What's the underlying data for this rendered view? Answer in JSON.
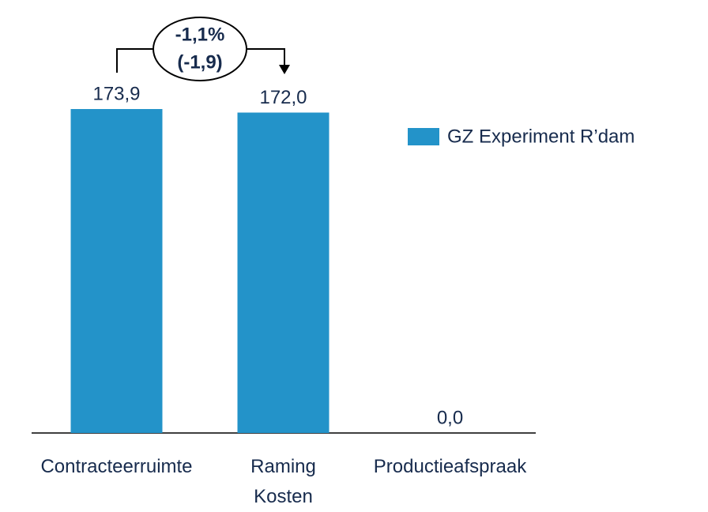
{
  "chart_data": {
    "type": "bar",
    "categories": [
      "Contracteerruimte",
      "Raming Kosten",
      "Productieafspraak"
    ],
    "series": [
      {
        "name": "GZ Experiment R’dam",
        "color": "#2393c9",
        "values": [
          173.9,
          172.0,
          0.0
        ],
        "value_labels": [
          "173,9",
          "172,0",
          "0,0"
        ]
      }
    ],
    "annotation": [
      "-1,1%",
      "(-1,9)"
    ],
    "legend": "right"
  }
}
